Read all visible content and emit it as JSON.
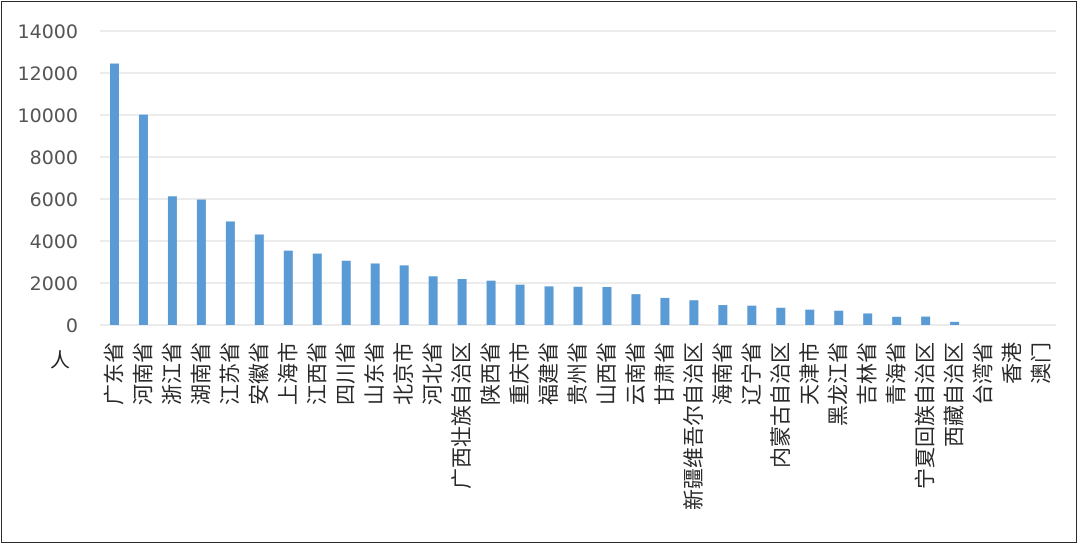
{
  "chart_data": {
    "type": "bar",
    "title": "",
    "xlabel": "",
    "ylabel": "人",
    "ylim": [
      0,
      14000
    ],
    "yticks": [
      0,
      2000,
      4000,
      6000,
      8000,
      10000,
      12000,
      14000
    ],
    "grid": true,
    "legend": "none",
    "bar_color": "#5b9bd5",
    "categories": [
      "广东省",
      "河南省",
      "浙江省",
      "湖南省",
      "江苏省",
      "安徽省",
      "上海市",
      "江西省",
      "四川省",
      "山东省",
      "北京市",
      "河北省",
      "广西壮族自治区",
      "陕西省",
      "重庆市",
      "福建省",
      "贵州省",
      "山西省",
      "云南省",
      "甘肃省",
      "新疆维吾尔自治区",
      "海南省",
      "辽宁省",
      "内蒙古自治区",
      "天津市",
      "黑龙江省",
      "吉林省",
      "青海省",
      "宁夏回族自治区",
      "西藏自治区",
      "台湾省",
      "香港",
      "澳门"
    ],
    "values": [
      12450,
      10020,
      6130,
      5970,
      4930,
      4310,
      3540,
      3400,
      3060,
      2930,
      2840,
      2320,
      2190,
      2110,
      1920,
      1840,
      1820,
      1810,
      1470,
      1290,
      1180,
      950,
      920,
      820,
      730,
      680,
      550,
      390,
      400,
      150,
      0,
      0,
      0
    ]
  }
}
